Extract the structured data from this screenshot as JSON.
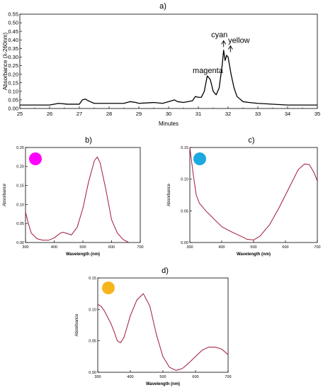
{
  "chart_data": [
    {
      "panel": "a)",
      "type": "line",
      "xlabel": "Minutes",
      "ylabel": "Absorbance (λ-260nm)",
      "xlim": [
        25,
        35
      ],
      "ylim": [
        0,
        0.55
      ],
      "xticks": [
        25,
        26,
        27,
        28,
        29,
        30,
        31,
        32,
        33,
        34,
        35
      ],
      "yticks": [
        0.0,
        0.05,
        0.1,
        0.15,
        0.2,
        0.25,
        0.3,
        0.35,
        0.4,
        0.45,
        0.5,
        0.55
      ],
      "ytick_labels": [
        "0.00",
        "0.05",
        "0.10",
        "0.15",
        "0.20",
        "0.25",
        "0.30",
        "0.35",
        "0.40",
        "0.45",
        "0.50",
        "0.55"
      ],
      "line_color": "#000000",
      "annotations": [
        {
          "text": "magenta",
          "x": 31.32,
          "y": 0.19,
          "arrow": false
        },
        {
          "text": "cyan",
          "x": 31.85,
          "y": 0.35,
          "arrow": true
        },
        {
          "text": "yellow",
          "x": 32.08,
          "y": 0.32,
          "arrow": true
        }
      ],
      "x": [
        25,
        26,
        26.3,
        26.6,
        27,
        27.1,
        27.2,
        27.3,
        27.5,
        28,
        28.5,
        28.7,
        28.9,
        29,
        29.5,
        29.8,
        30,
        30.2,
        30.3,
        30.5,
        30.8,
        30.9,
        31,
        31.1,
        31.2,
        31.3,
        31.4,
        31.5,
        31.6,
        31.7,
        31.8,
        31.85,
        31.9,
        31.95,
        32,
        32.05,
        32.1,
        32.2,
        32.3,
        32.5,
        32.7,
        33,
        34,
        35
      ],
      "y": [
        0.02,
        0.02,
        0.03,
        0.025,
        0.025,
        0.05,
        0.055,
        0.045,
        0.03,
        0.03,
        0.03,
        0.04,
        0.035,
        0.03,
        0.035,
        0.03,
        0.04,
        0.05,
        0.04,
        0.035,
        0.045,
        0.07,
        0.065,
        0.065,
        0.1,
        0.19,
        0.17,
        0.1,
        0.08,
        0.12,
        0.25,
        0.34,
        0.28,
        0.31,
        0.3,
        0.25,
        0.2,
        0.12,
        0.07,
        0.04,
        0.035,
        0.03,
        0.02,
        0.02
      ]
    },
    {
      "panel": "b)",
      "type": "line",
      "xlabel": "Wavelength (nm)",
      "ylabel": "Absorbance",
      "xlim": [
        300,
        700
      ],
      "ylim": [
        0,
        0.25
      ],
      "xticks": [
        300,
        400,
        500,
        600,
        700
      ],
      "yticks": [
        0.0,
        0.05,
        0.1,
        0.15,
        0.2,
        0.25
      ],
      "ytick_labels": [
        "0.00",
        "0.05",
        "0.10",
        "0.15",
        "0.20",
        "0.25"
      ],
      "dot_color": "#ff00ff",
      "line_color": "#a01838",
      "x": [
        300,
        310,
        320,
        340,
        360,
        380,
        400,
        420,
        430,
        440,
        460,
        480,
        500,
        520,
        540,
        550,
        560,
        580,
        600,
        620,
        640,
        660
      ],
      "y": [
        0.08,
        0.05,
        0.025,
        0.01,
        0.006,
        0.006,
        0.012,
        0.024,
        0.027,
        0.025,
        0.02,
        0.04,
        0.09,
        0.16,
        0.215,
        0.225,
        0.21,
        0.14,
        0.06,
        0.025,
        0.008,
        0.0
      ]
    },
    {
      "panel": "c)",
      "type": "line",
      "xlabel": "Wavelength (nm)",
      "ylabel": "Absorbance",
      "xlim": [
        300,
        700
      ],
      "ylim": [
        0,
        0.15
      ],
      "xticks": [
        300,
        400,
        500,
        600,
        700
      ],
      "yticks": [
        0.0,
        0.05,
        0.1,
        0.15
      ],
      "ytick_labels": [
        "0.00",
        "0.05",
        "0.10",
        "0.15"
      ],
      "dot_color": "#1ca8e0",
      "line_color": "#a01838",
      "x": [
        300,
        310,
        320,
        330,
        350,
        370,
        400,
        430,
        460,
        480,
        500,
        520,
        550,
        580,
        600,
        620,
        640,
        660,
        675,
        690,
        700
      ],
      "y": [
        0.15,
        0.11,
        0.075,
        0.062,
        0.05,
        0.04,
        0.025,
        0.017,
        0.01,
        0.005,
        0.004,
        0.01,
        0.028,
        0.055,
        0.075,
        0.095,
        0.115,
        0.124,
        0.123,
        0.11,
        0.097
      ]
    },
    {
      "panel": "d)",
      "type": "line",
      "xlabel": "Wavelength (nm)",
      "ylabel": "Absorbance",
      "xlim": [
        300,
        700
      ],
      "ylim": [
        0,
        0.15
      ],
      "xticks": [
        300,
        400,
        500,
        600,
        700
      ],
      "yticks": [
        0.0,
        0.05,
        0.1,
        0.15
      ],
      "ytick_labels": [
        "0.00",
        "0.05",
        "0.10",
        "0.15"
      ],
      "dot_color": "#f7b51c",
      "line_color": "#a01838",
      "x": [
        300,
        310,
        320,
        330,
        340,
        350,
        360,
        370,
        380,
        390,
        400,
        420,
        440,
        460,
        480,
        500,
        520,
        540,
        560,
        580,
        600,
        620,
        640,
        660,
        680,
        700
      ],
      "y": [
        0.108,
        0.105,
        0.098,
        0.088,
        0.078,
        0.065,
        0.05,
        0.047,
        0.055,
        0.072,
        0.09,
        0.115,
        0.125,
        0.105,
        0.06,
        0.025,
        0.008,
        0.003,
        0.006,
        0.015,
        0.025,
        0.035,
        0.04,
        0.04,
        0.037,
        0.028
      ]
    }
  ]
}
